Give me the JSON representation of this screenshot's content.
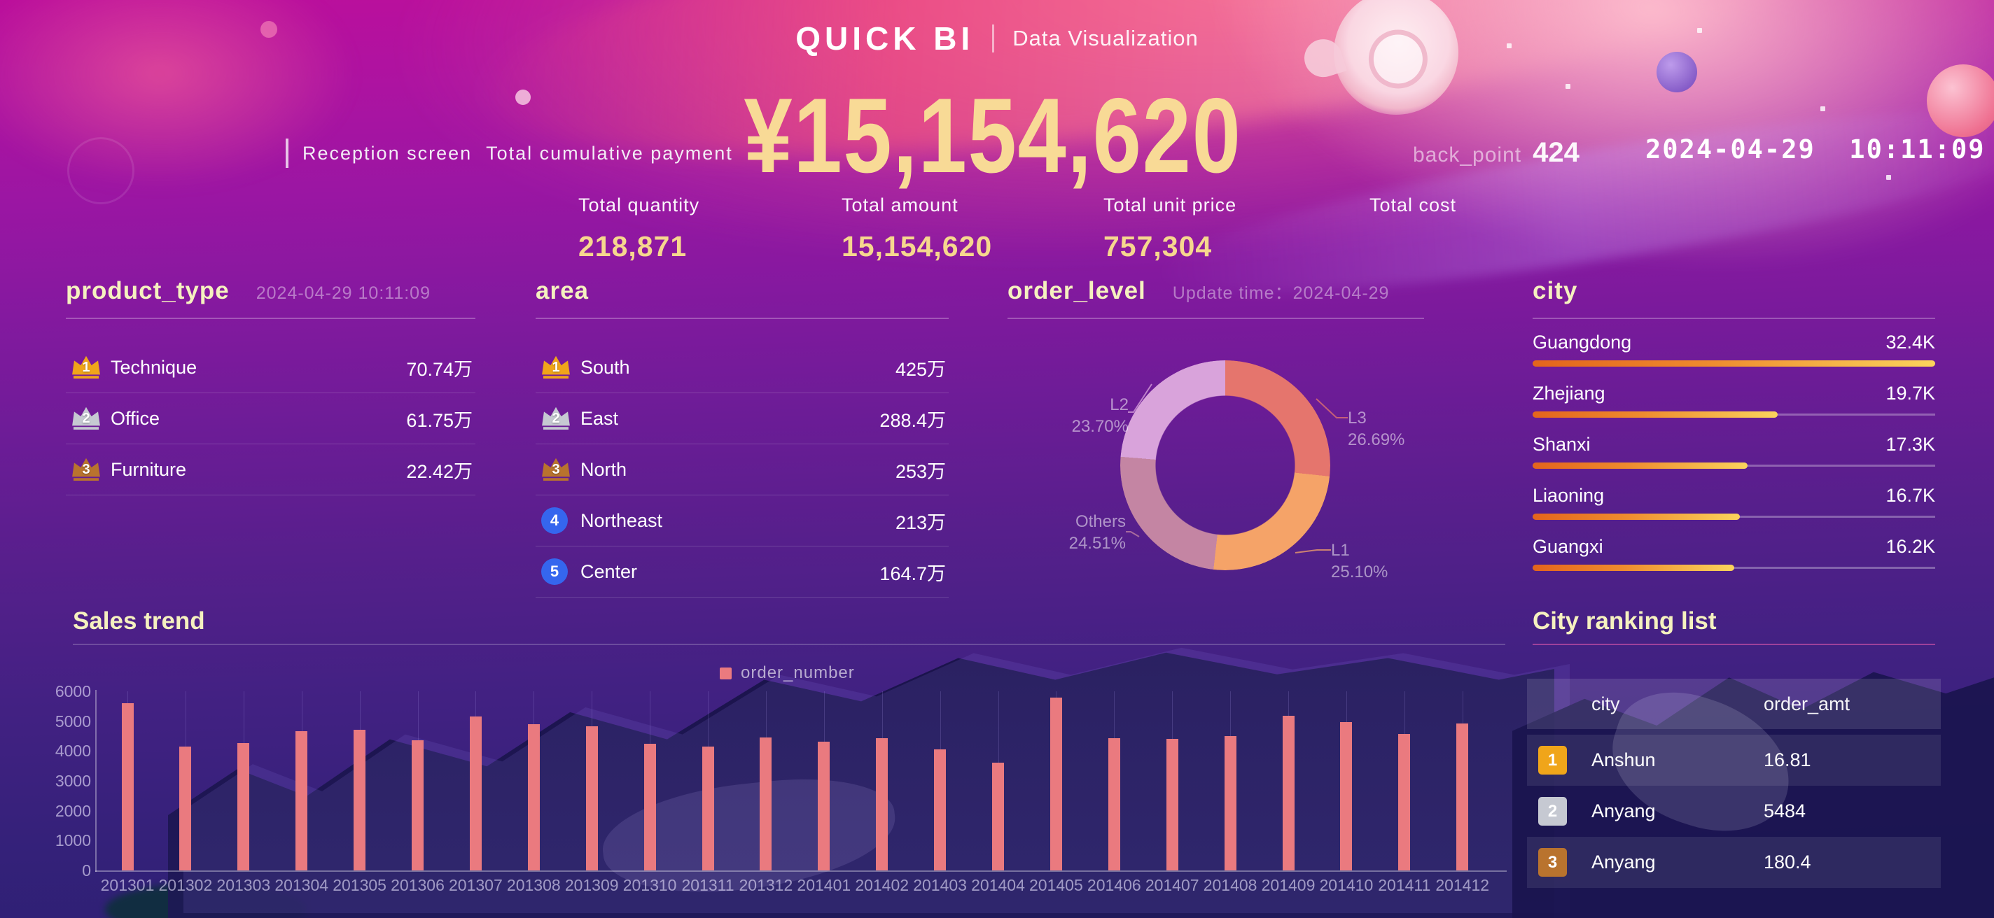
{
  "header": {
    "brand": "QUICK BI",
    "subtitle": "Data Visualization",
    "screen_label": "Reception screen",
    "kpi_label": "Total cumulative payment",
    "kpi_value": "¥15,154,620",
    "back_point_label": "back_point",
    "back_point_value": "424",
    "clock": "2024-04-29  10:11:09"
  },
  "stats": [
    {
      "label": "Total quantity",
      "value": "218,871"
    },
    {
      "label": "Total amount",
      "value": "15,154,620"
    },
    {
      "label": "Total unit price",
      "value": "757,304"
    },
    {
      "label": "Total cost",
      "value": ""
    }
  ],
  "product_type": {
    "title": "product_type",
    "timestamp": "2024-04-29 10:11:09",
    "items": [
      {
        "rank": "1",
        "label": "Technique",
        "value": "70.74万"
      },
      {
        "rank": "2",
        "label": "Office",
        "value": "61.75万"
      },
      {
        "rank": "3",
        "label": "Furniture",
        "value": "22.42万"
      }
    ]
  },
  "area": {
    "title": "area",
    "items": [
      {
        "rank": "1",
        "label": "South",
        "value": "425万"
      },
      {
        "rank": "2",
        "label": "East",
        "value": "288.4万"
      },
      {
        "rank": "3",
        "label": "North",
        "value": "253万"
      },
      {
        "rank": "4",
        "label": "Northeast",
        "value": "213万"
      },
      {
        "rank": "5",
        "label": "Center",
        "value": "164.7万"
      }
    ]
  },
  "order_level": {
    "title": "order_level",
    "update_label": "Update time：",
    "update_value": "2024-04-29"
  },
  "city": {
    "title": "city",
    "items": [
      {
        "label": "Guangdong",
        "value": "32.4K",
        "num": 32.4
      },
      {
        "label": "Zhejiang",
        "value": "19.7K",
        "num": 19.7
      },
      {
        "label": "Shanxi",
        "value": "17.3K",
        "num": 17.3
      },
      {
        "label": "Liaoning",
        "value": "16.7K",
        "num": 16.7
      },
      {
        "label": "Guangxi",
        "value": "16.2K",
        "num": 16.2
      }
    ]
  },
  "sales_trend": {
    "title": "Sales trend"
  },
  "city_ranking": {
    "title": "City ranking list",
    "columns": {
      "city": "city",
      "amount": "order_amt"
    },
    "rows": [
      {
        "rank": "1",
        "city": "Anshun",
        "amount": "16.81"
      },
      {
        "rank": "2",
        "city": "Anyang",
        "amount": "5484"
      },
      {
        "rank": "3",
        "city": "Anyang",
        "amount": "180.4"
      }
    ]
  },
  "chart_data": [
    {
      "type": "pie",
      "title": "order_level",
      "donut": true,
      "start_angle": "12 o'clock, clockwise",
      "labels": [
        "L3",
        "L1",
        "Others",
        "L2"
      ],
      "values": [
        26.69,
        25.1,
        24.51,
        23.7
      ],
      "value_labels": [
        "26.69%",
        "25.10%",
        "24.51%",
        "23.70%"
      ],
      "colors": [
        "#e5756d",
        "#f5a368",
        "#c485a3",
        "#d9a3db"
      ]
    },
    {
      "type": "bar",
      "title": "Sales trend",
      "series_name": "order_number",
      "categories": [
        "201301",
        "201302",
        "201303",
        "201304",
        "201305",
        "201306",
        "201307",
        "201308",
        "201309",
        "201310",
        "201311",
        "201312",
        "201401",
        "201402",
        "201403",
        "201404",
        "201405",
        "201406",
        "201407",
        "201408",
        "201409",
        "201410",
        "201411",
        "201412"
      ],
      "values": [
        5600,
        4150,
        4270,
        4660,
        4700,
        4360,
        5160,
        4890,
        4820,
        4250,
        4140,
        4460,
        4310,
        4420,
        4060,
        3600,
        5790,
        4430,
        4400,
        4490,
        5190,
        4970,
        4560,
        4930
      ],
      "xlabel": "",
      "ylabel": "",
      "ylim": [
        0,
        6000
      ],
      "ytick_step": 1000,
      "bar_color": "#ea7a7f",
      "grid": "vertical",
      "legend_position": "top-center"
    }
  ],
  "colors": {
    "accent_gold": "#f6d78e",
    "title_cream": "#f5f1bf",
    "bar_salmon": "#ea7a7f",
    "city_bar_from": "#e4641c",
    "city_bar_to": "#fbd45c",
    "rank_gold": "#f0a51a",
    "rank_silver": "#c6c9d2",
    "rank_bronze": "#b9732e",
    "rank_blue": "#3566ee"
  }
}
